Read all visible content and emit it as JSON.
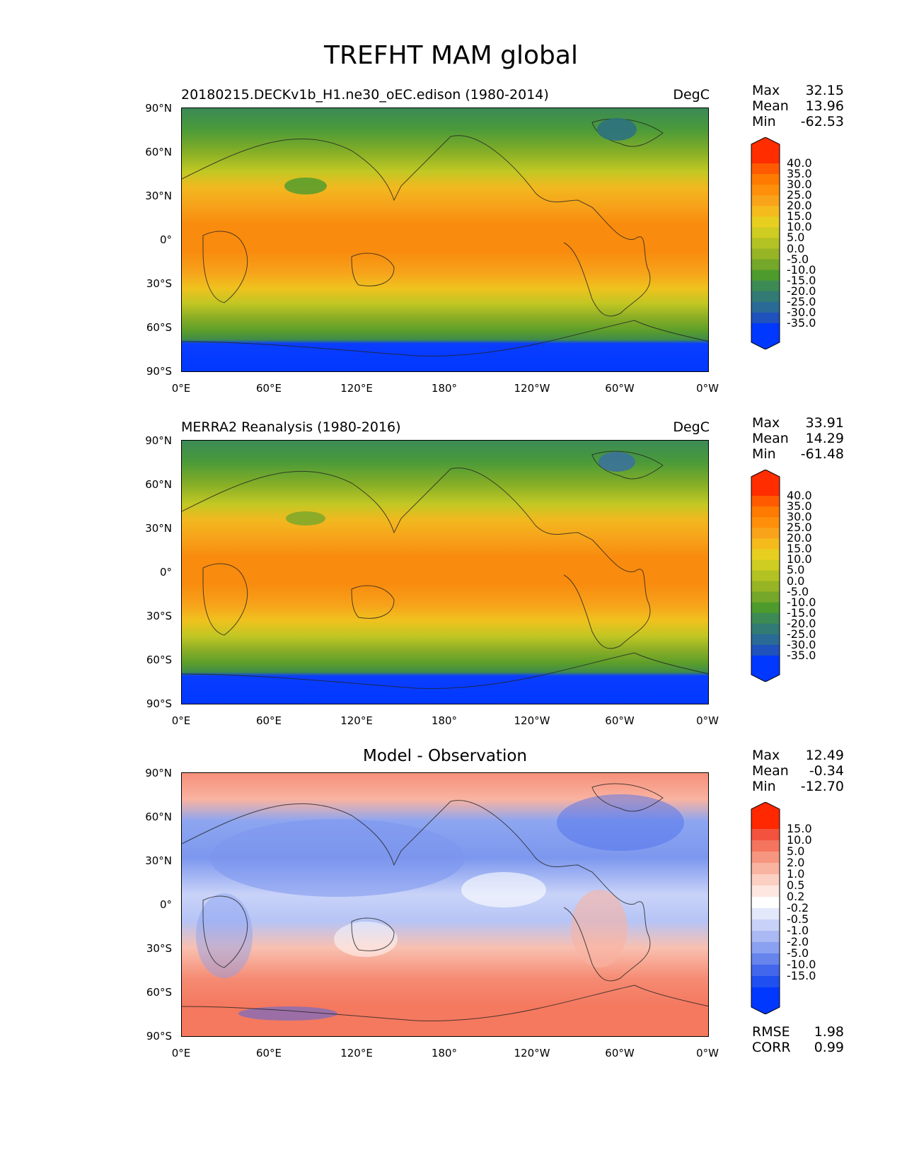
{
  "figure": {
    "title": "TREFHT MAM global"
  },
  "axes": {
    "lat_labels": [
      "90°N",
      "60°N",
      "30°N",
      "0°",
      "30°S",
      "60°S",
      "90°S"
    ],
    "lon_labels": [
      "0°E",
      "60°E",
      "120°E",
      "180°",
      "120°W",
      "60°W",
      "0°W"
    ]
  },
  "panels": [
    {
      "left_title": "20180215.DECKv1b_H1.ne30_oEC.edison (1980-2014)",
      "right_title": "DegC",
      "stats": [
        {
          "label": "Max",
          "value": "32.15"
        },
        {
          "label": "Mean",
          "value": "13.96"
        },
        {
          "label": "Min",
          "value": "-62.53"
        }
      ]
    },
    {
      "left_title": "MERRA2 Reanalysis (1980-2016)",
      "right_title": "DegC",
      "stats": [
        {
          "label": "Max",
          "value": "33.91"
        },
        {
          "label": "Mean",
          "value": "14.29"
        },
        {
          "label": "Min",
          "value": "-61.48"
        }
      ]
    },
    {
      "center_title": "Model - Observation",
      "stats": [
        {
          "label": "Max",
          "value": "12.49"
        },
        {
          "label": "Mean",
          "value": "-0.34"
        },
        {
          "label": "Min",
          "value": "-12.70"
        }
      ],
      "extra_stats": [
        {
          "label": "RMSE",
          "value": "1.98"
        },
        {
          "label": "CORR",
          "value": "0.99"
        }
      ]
    }
  ],
  "chart_data": [
    {
      "type": "heatmap",
      "title": "20180215.DECKv1b_H1.ne30_oEC.edison (1980-2014)",
      "units": "DegC",
      "xlabel": "",
      "ylabel": "",
      "xlim": [
        0,
        360
      ],
      "ylim": [
        -90,
        90
      ],
      "colorbar_ticks": [
        "40.0",
        "35.0",
        "30.0",
        "25.0",
        "20.0",
        "15.0",
        "10.0",
        "5.0",
        "0.0",
        "-5.0",
        "-10.0",
        "-15.0",
        "-20.0",
        "-25.0",
        "-30.0",
        "-35.0"
      ],
      "colorbar_colors": [
        "#ff2d00",
        "#ff5a00",
        "#ff7a00",
        "#ff8f0a",
        "#f9a31a",
        "#f5bb1d",
        "#e8cf1f",
        "#cfcc22",
        "#b3c223",
        "#96b424",
        "#74a72a",
        "#4d9b2c",
        "#3d8b54",
        "#327a74",
        "#2a6a96",
        "#1f52bc",
        "#0038ff"
      ],
      "stats": {
        "max": 32.15,
        "mean": 13.96,
        "min": -62.53
      }
    },
    {
      "type": "heatmap",
      "title": "MERRA2 Reanalysis (1980-2016)",
      "units": "DegC",
      "xlabel": "",
      "ylabel": "",
      "xlim": [
        0,
        360
      ],
      "ylim": [
        -90,
        90
      ],
      "colorbar_ticks": [
        "40.0",
        "35.0",
        "30.0",
        "25.0",
        "20.0",
        "15.0",
        "10.0",
        "5.0",
        "0.0",
        "-5.0",
        "-10.0",
        "-15.0",
        "-20.0",
        "-25.0",
        "-30.0",
        "-35.0"
      ],
      "colorbar_colors": [
        "#ff2d00",
        "#ff5a00",
        "#ff7a00",
        "#ff8f0a",
        "#f9a31a",
        "#f5bb1d",
        "#e8cf1f",
        "#cfcc22",
        "#b3c223",
        "#96b424",
        "#74a72a",
        "#4d9b2c",
        "#3d8b54",
        "#327a74",
        "#2a6a96",
        "#1f52bc",
        "#0038ff"
      ],
      "stats": {
        "max": 33.91,
        "mean": 14.29,
        "min": -61.48
      }
    },
    {
      "type": "heatmap",
      "title": "Model - Observation",
      "xlabel": "",
      "ylabel": "",
      "xlim": [
        0,
        360
      ],
      "ylim": [
        -90,
        90
      ],
      "colorbar_ticks": [
        "15.0",
        "10.0",
        "5.0",
        "2.0",
        "1.0",
        "0.5",
        "0.2",
        "-0.2",
        "-0.5",
        "-1.0",
        "-2.0",
        "-5.0",
        "-10.0",
        "-15.0"
      ],
      "colorbar_colors": [
        "#ff2800",
        "#f2523e",
        "#f4745e",
        "#f79680",
        "#f9b3a1",
        "#fbcfc2",
        "#fde7e0",
        "#ffffff",
        "#e4e8fb",
        "#c8d2f8",
        "#aab9f4",
        "#8aa0f0",
        "#6784ec",
        "#4266ec",
        "#1f4ff0",
        "#0038ff"
      ],
      "stats": {
        "max": 12.49,
        "mean": -0.34,
        "min": -12.7,
        "rmse": 1.98,
        "corr": 0.99
      }
    }
  ]
}
